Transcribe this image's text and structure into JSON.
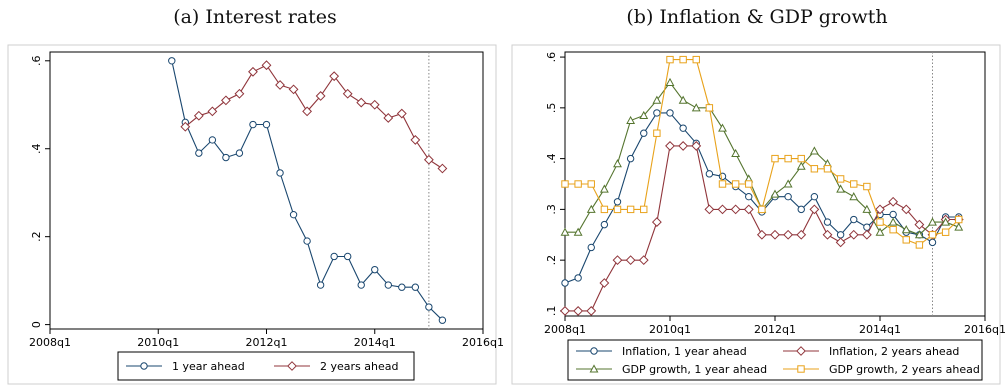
{
  "panels": {
    "a_title": "(a) Interest rates",
    "b_title": "(b) Inflation & GDP growth"
  },
  "chart_data": [
    {
      "type": "line",
      "title": "(a) Interest rates",
      "xlabel": "",
      "ylabel": "",
      "x_ticks": [
        "2008q1",
        "2010q1",
        "2012q1",
        "2014q1",
        "2016q1"
      ],
      "y_ticks": [
        "0",
        ".2",
        ".4",
        ".6"
      ],
      "xlim": [
        "2008q1",
        "2016q1"
      ],
      "ylim": [
        -0.01,
        0.62
      ],
      "vline_x": "2015q1",
      "grid": false,
      "legend_position": "bottom",
      "x": [
        "2010q2",
        "2010q3",
        "2010q4",
        "2011q1",
        "2011q2",
        "2011q3",
        "2011q4",
        "2012q1",
        "2012q2",
        "2012q3",
        "2012q4",
        "2013q1",
        "2013q2",
        "2013q3",
        "2013q4",
        "2014q1",
        "2014q2",
        "2014q3",
        "2014q4",
        "2015q1",
        "2015q2",
        "2015q3"
      ],
      "series": [
        {
          "name": "1 year ahead",
          "color": "#1a476f",
          "marker": "circle",
          "values": [
            0.6,
            0.46,
            0.39,
            0.42,
            0.38,
            0.39,
            0.455,
            0.455,
            0.345,
            0.25,
            0.19,
            0.09,
            0.155,
            0.155,
            0.09,
            0.125,
            0.09,
            0.085,
            0.085,
            0.04,
            0.01,
            null
          ]
        },
        {
          "name": "2 years ahead",
          "color": "#90353b",
          "marker": "diamond",
          "values": [
            null,
            0.45,
            0.475,
            0.485,
            0.51,
            0.525,
            0.575,
            0.59,
            0.545,
            0.535,
            0.485,
            0.52,
            0.565,
            0.525,
            0.505,
            0.5,
            0.47,
            0.48,
            0.42,
            0.375,
            0.355,
            null
          ]
        }
      ]
    },
    {
      "type": "line",
      "title": "(b) Inflation & GDP growth",
      "xlabel": "",
      "ylabel": "",
      "x_ticks": [
        "2008q1",
        "2010q1",
        "2012q1",
        "2014q1",
        "2016q1"
      ],
      "y_ticks": [
        ".1",
        ".2",
        ".3",
        ".4",
        ".5",
        ".6"
      ],
      "xlim": [
        "2008q1",
        "2016q1"
      ],
      "ylim": [
        0.09,
        0.61
      ],
      "vline_x": "2015q1",
      "grid": false,
      "legend_position": "bottom",
      "x": [
        "2008q1",
        "2008q2",
        "2008q3",
        "2008q4",
        "2009q1",
        "2009q2",
        "2009q3",
        "2009q4",
        "2010q1",
        "2010q2",
        "2010q3",
        "2010q4",
        "2011q1",
        "2011q2",
        "2011q3",
        "2011q4",
        "2012q1",
        "2012q2",
        "2012q3",
        "2012q4",
        "2013q1",
        "2013q2",
        "2013q3",
        "2013q4",
        "2014q1",
        "2014q2",
        "2014q3",
        "2014q4",
        "2015q1",
        "2015q2",
        "2015q3"
      ],
      "series": [
        {
          "name": "Inflation, 1 year ahead",
          "color": "#1a476f",
          "marker": "circle",
          "values": [
            0.155,
            0.165,
            0.225,
            0.27,
            0.315,
            0.4,
            0.45,
            0.49,
            0.49,
            0.46,
            0.43,
            0.37,
            0.365,
            0.345,
            0.325,
            0.295,
            0.325,
            0.325,
            0.3,
            0.325,
            0.275,
            0.25,
            0.28,
            0.265,
            0.29,
            0.29,
            0.255,
            0.25,
            0.235,
            0.285,
            0.285
          ]
        },
        {
          "name": "Inflation, 2 years ahead",
          "color": "#90353b",
          "marker": "diamond",
          "values": [
            0.1,
            0.1,
            0.1,
            0.155,
            0.2,
            0.2,
            0.2,
            0.275,
            0.425,
            0.425,
            0.425,
            0.3,
            0.3,
            0.3,
            0.3,
            0.25,
            0.25,
            0.25,
            0.25,
            0.3,
            0.25,
            0.235,
            0.25,
            0.25,
            0.3,
            0.315,
            0.3,
            0.27,
            0.25,
            0.28,
            0.28
          ]
        },
        {
          "name": "GDP growth, 1 year ahead",
          "color": "#55752f",
          "marker": "triangle",
          "values": [
            0.255,
            0.255,
            0.3,
            0.34,
            0.39,
            0.475,
            0.485,
            0.515,
            0.55,
            0.515,
            0.5,
            0.5,
            0.46,
            0.41,
            0.36,
            0.3,
            0.33,
            0.35,
            0.385,
            0.415,
            0.39,
            0.34,
            0.325,
            0.3,
            0.255,
            0.275,
            0.26,
            0.25,
            0.275,
            0.275,
            0.265
          ]
        },
        {
          "name": "GDP growth, 2 years ahead",
          "color": "#e8a21b",
          "marker": "square",
          "values": [
            0.35,
            0.35,
            0.35,
            0.3,
            0.3,
            0.3,
            0.3,
            0.45,
            0.595,
            0.595,
            0.595,
            0.5,
            0.35,
            0.35,
            0.35,
            0.3,
            0.4,
            0.4,
            0.4,
            0.38,
            0.38,
            0.36,
            0.35,
            0.345,
            0.275,
            0.26,
            0.24,
            0.23,
            0.25,
            0.255,
            0.28
          ]
        }
      ]
    }
  ]
}
